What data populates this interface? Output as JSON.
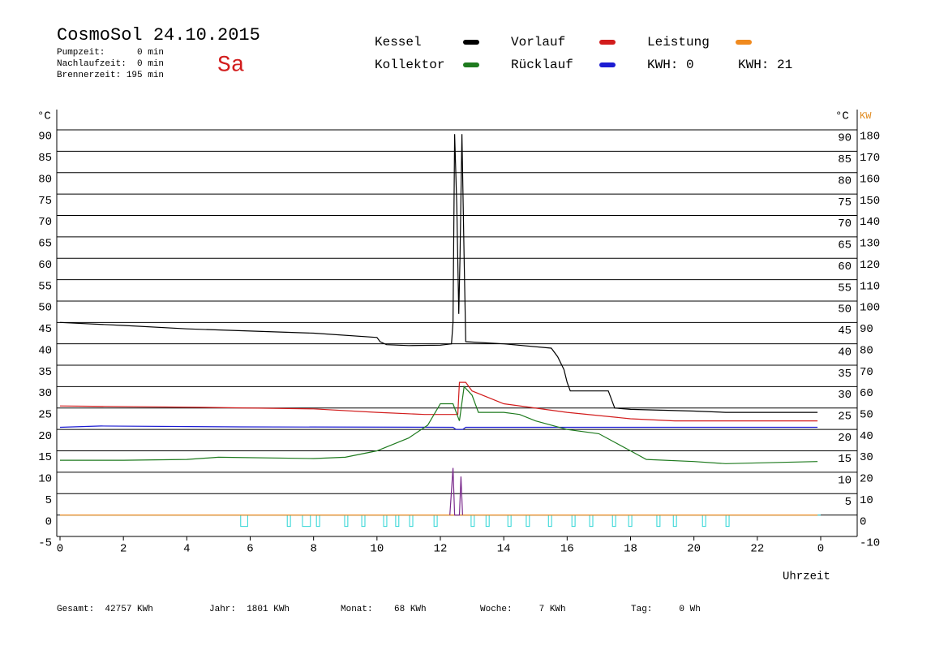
{
  "chart_data": {
    "type": "line",
    "title": "CosmoSol 24.10.2015",
    "weekday": "Sa",
    "stats": [
      "Pumpzeit:      0 min",
      "Nachlaufzeit:  0 min",
      "Brennerzeit: 195 min"
    ],
    "kwh_labels": [
      {
        "text": "KWH: 0",
        "color": "#e08a1e"
      },
      {
        "text": "KWH: 21",
        "color": "#7a2a8c"
      }
    ],
    "ylabel": "°C",
    "y2label": "KW",
    "xlabel": "Uhrzeit",
    "footer": [
      "Gesamt:  42757 KWh",
      "Jahr:  1801 KWh",
      "Monat:    68 KWh",
      "Woche:     7 KWh",
      "Tag:     0 Wh"
    ],
    "xlim": [
      0,
      24
    ],
    "xticks": [
      0,
      2,
      4,
      6,
      8,
      10,
      12,
      14,
      16,
      18,
      20,
      22,
      {
        "value": 24,
        "label": "0"
      }
    ],
    "ylim": [
      -5,
      90
    ],
    "yticks": [
      90,
      85,
      80,
      75,
      70,
      65,
      60,
      55,
      50,
      45,
      40,
      35,
      30,
      25,
      20,
      15,
      10,
      5,
      0,
      -5
    ],
    "yticks_right": [
      90,
      85,
      80,
      75,
      70,
      65,
      60,
      55,
      50,
      45,
      40,
      35,
      30,
      25,
      20,
      15,
      10,
      5
    ],
    "y2lim": [
      -10,
      180
    ],
    "y2ticks": [
      180,
      170,
      160,
      150,
      140,
      130,
      120,
      110,
      100,
      90,
      80,
      70,
      60,
      50,
      40,
      30,
      20,
      10,
      0,
      -10
    ],
    "grid": true,
    "series": [
      {
        "name": "Kessel",
        "color": "#000000",
        "x": [
          0,
          2,
          4,
          6,
          8,
          10,
          10.1,
          10.3,
          11,
          12,
          12.35,
          12.4,
          12.45,
          12.52,
          12.58,
          12.62,
          12.68,
          12.75,
          12.8,
          14,
          15.5,
          15.7,
          15.9,
          16,
          16.1,
          17.3,
          17.5,
          18,
          20,
          21,
          23.9
        ],
        "values": [
          45,
          44.3,
          43.5,
          43,
          42.5,
          41.5,
          40.5,
          39.8,
          39.6,
          39.7,
          40,
          45,
          89,
          72,
          47,
          60,
          89,
          60,
          40.5,
          40,
          39,
          37,
          34,
          31,
          29,
          29,
          25,
          24.7,
          24.3,
          24,
          24
        ]
      },
      {
        "name": "Kollektor",
        "color": "#1e7a1e",
        "x": [
          0,
          2,
          4,
          5,
          8,
          9,
          10,
          11,
          11.6,
          12,
          12.4,
          12.6,
          12.75,
          13,
          13.2,
          14,
          14.5,
          15,
          16,
          17,
          17.5,
          18,
          18.5,
          20,
          21,
          23.9
        ],
        "values": [
          12.8,
          12.8,
          13,
          13.5,
          13.2,
          13.5,
          15,
          18,
          21,
          26,
          26,
          22,
          30,
          28,
          24,
          24,
          23.5,
          22,
          20,
          19,
          17,
          15,
          13,
          12.5,
          12,
          12.5
        ]
      },
      {
        "name": "Vorlauf",
        "color": "#d21c1c",
        "x": [
          0,
          4,
          8,
          10,
          11.5,
          12.55,
          12.6,
          12.8,
          13,
          14,
          16,
          18,
          19.4,
          23.9
        ],
        "values": [
          25.5,
          25.2,
          24.8,
          24,
          23.5,
          23.5,
          31,
          31,
          29,
          26,
          24,
          22.5,
          22,
          22
        ]
      },
      {
        "name": "Rücklauf",
        "color": "#1c1cd2",
        "x": [
          0,
          1.3,
          5.7,
          12.4,
          12.5,
          12.7,
          12.8,
          23.9
        ],
        "values": [
          20.5,
          20.8,
          20.6,
          20.5,
          20,
          20,
          20.5,
          20.5
        ]
      },
      {
        "name": "Leistung",
        "color": "#f08a1e",
        "axis": "y2",
        "x": [
          0,
          23.9
        ],
        "values": [
          0,
          0
        ]
      }
    ],
    "energy": {
      "color": "#7a2a8c",
      "axis": "y2",
      "x": [
        12.3,
        12.4,
        12.45,
        12.6,
        12.65,
        12.7
      ],
      "values": [
        0,
        22,
        0,
        0,
        18,
        0
      ]
    },
    "pump": {
      "color": "#2ad4d4",
      "intervals": [
        [
          5.7,
          5.92
        ],
        [
          7.17,
          7.27
        ],
        [
          7.65,
          7.9
        ],
        [
          8.09,
          8.19
        ],
        [
          8.98,
          9.08
        ],
        [
          9.52,
          9.62
        ],
        [
          10.21,
          10.31
        ],
        [
          10.59,
          10.69
        ],
        [
          11.03,
          11.13
        ],
        [
          11.8,
          11.9
        ],
        [
          12.97,
          13.07
        ],
        [
          13.44,
          13.54
        ],
        [
          14.13,
          14.23
        ],
        [
          14.71,
          14.81
        ],
        [
          15.41,
          15.51
        ],
        [
          16.15,
          16.25
        ],
        [
          16.71,
          16.81
        ],
        [
          17.43,
          17.53
        ],
        [
          17.94,
          18.04
        ],
        [
          18.83,
          18.93
        ],
        [
          19.35,
          19.45
        ],
        [
          20.27,
          20.37
        ],
        [
          21.01,
          21.11
        ]
      ]
    }
  }
}
